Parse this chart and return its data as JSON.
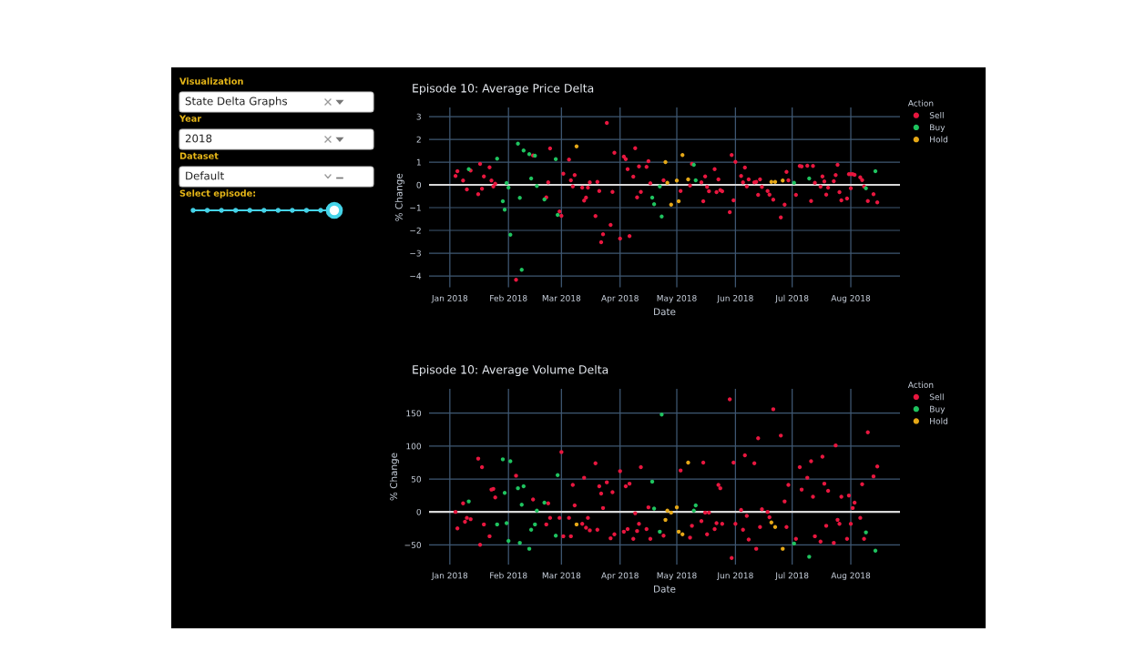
{
  "chart_data": [
    {
      "type": "other",
      "annotations": [
        "Visualization",
        "State Delta Graphs",
        "Year",
        "2018",
        "Dataset",
        "Default",
        "Select episode:"
      ]
    },
    {
      "type": "scatter",
      "title": "Episode 10: Average Price Delta",
      "xlabel": "Date",
      "ylabel": "% Change",
      "legend_title": "Action",
      "legend": "top right",
      "grid": true,
      "marker": "circle",
      "xlim": [
        "2017-12-21",
        "2018-08-27"
      ],
      "ylim": [
        -4.5,
        3.4
      ],
      "xticks": [
        {
          "value": "2018-01-01",
          "label": "Jan 2018"
        },
        {
          "value": "2018-02-01",
          "label": "Feb 2018"
        },
        {
          "value": "2018-03-01",
          "label": "Mar 2018"
        },
        {
          "value": "2018-04-01",
          "label": "Apr 2018"
        },
        {
          "value": "2018-05-01",
          "label": "May 2018"
        },
        {
          "value": "2018-06-01",
          "label": "Jun 2018"
        },
        {
          "value": "2018-07-01",
          "label": "Jul 2018"
        },
        {
          "value": "2018-08-01",
          "label": "Aug 2018"
        }
      ],
      "yticks": [
        {
          "value": -4,
          "label": "−4"
        },
        {
          "value": -3,
          "label": "−3"
        },
        {
          "value": -2,
          "label": "−2"
        },
        {
          "value": -1,
          "label": "−1"
        },
        0,
        1,
        2,
        3
      ],
      "series": [
        {
          "name": "Sell",
          "color": "#e8173f",
          "x": [
            "2018-01-04",
            "2018-01-05",
            "2018-01-08",
            "2018-01-10",
            "2018-01-12",
            "2018-01-16",
            "2018-01-17",
            "2018-01-18",
            "2018-01-19",
            "2018-01-22",
            "2018-01-23",
            "2018-01-24",
            "2018-01-25",
            "2018-02-05",
            "2018-02-14",
            "2018-02-21",
            "2018-02-22",
            "2018-02-23",
            "2018-02-28",
            "2018-03-01",
            "2018-03-02",
            "2018-03-05",
            "2018-03-06",
            "2018-03-07",
            "2018-03-08",
            "2018-03-12",
            "2018-03-13",
            "2018-03-14",
            "2018-03-15",
            "2018-03-16",
            "2018-03-19",
            "2018-03-20",
            "2018-03-21",
            "2018-03-22",
            "2018-03-23",
            "2018-03-25",
            "2018-03-27",
            "2018-03-28",
            "2018-03-29",
            "2018-04-01",
            "2018-04-03",
            "2018-04-04",
            "2018-04-05",
            "2018-04-06",
            "2018-04-08",
            "2018-04-09",
            "2018-04-10",
            "2018-04-11",
            "2018-04-12",
            "2018-04-15",
            "2018-04-16",
            "2018-04-17",
            "2018-04-24",
            "2018-05-03",
            "2018-05-08",
            "2018-05-09",
            "2018-05-14",
            "2018-05-15",
            "2018-05-16",
            "2018-05-17",
            "2018-05-18",
            "2018-05-21",
            "2018-05-22",
            "2018-05-23",
            "2018-05-24",
            "2018-05-25",
            "2018-05-29",
            "2018-05-30",
            "2018-05-31",
            "2018-06-01",
            "2018-06-04",
            "2018-06-05",
            "2018-06-06",
            "2018-06-07",
            "2018-06-08",
            "2018-06-11",
            "2018-06-12",
            "2018-06-13",
            "2018-06-14",
            "2018-06-15",
            "2018-06-18",
            "2018-06-19",
            "2018-06-21",
            "2018-06-25",
            "2018-06-27",
            "2018-06-28",
            "2018-06-29",
            "2018-07-03",
            "2018-07-05",
            "2018-07-06",
            "2018-07-09",
            "2018-07-11",
            "2018-07-12",
            "2018-07-13",
            "2018-07-16",
            "2018-07-17",
            "2018-07-18",
            "2018-07-19",
            "2018-07-20",
            "2018-07-23",
            "2018-07-24",
            "2018-07-25",
            "2018-07-26",
            "2018-07-27",
            "2018-07-30",
            "2018-07-31",
            "2018-08-01",
            "2018-08-01",
            "2018-08-02",
            "2018-08-03",
            "2018-08-06",
            "2018-08-07",
            "2018-08-08",
            "2018-08-10",
            "2018-08-13",
            "2018-08-15"
          ],
          "values": [
            0.39,
            0.6,
            0.19,
            -0.2,
            0.63,
            -0.41,
            0.92,
            -0.17,
            0.37,
            0.77,
            0.19,
            -0.07,
            0.05,
            -4.17,
            1.29,
            -0.55,
            0.11,
            1.6,
            -1.17,
            -1.36,
            0.49,
            1.11,
            0.2,
            -0.07,
            0.43,
            -0.12,
            -0.69,
            -0.56,
            -0.12,
            0.11,
            -1.37,
            0.13,
            -0.27,
            -2.52,
            -2.17,
            2.72,
            -1.76,
            -0.31,
            1.41,
            -2.36,
            1.24,
            1.13,
            0.69,
            -2.25,
            0.36,
            1.61,
            -0.55,
            0.81,
            -0.31,
            0.79,
            1.04,
            0.07,
            0.2,
            -0.27,
            -0.03,
            0.92,
            0.11,
            -0.72,
            0.37,
            -0.09,
            -0.28,
            0.69,
            -0.32,
            0.24,
            -0.23,
            -0.28,
            -1.2,
            1.31,
            -0.68,
            1.01,
            0.39,
            0.11,
            0.76,
            -0.07,
            0.24,
            0.11,
            0.13,
            -0.44,
            0.24,
            -0.09,
            -0.27,
            -0.43,
            -0.65,
            -1.43,
            -0.87,
            0.57,
            0.2,
            -0.44,
            0.83,
            0.81,
            0.84,
            -0.71,
            0.83,
            0.09,
            -0.08,
            0.37,
            0.15,
            -0.43,
            -0.12,
            0.16,
            0.43,
            0.88,
            -0.32,
            -0.68,
            -0.6,
            0.47,
            0.47,
            -0.15,
            0.47,
            0.44,
            0.33,
            0.21,
            -0.07,
            -0.71,
            -0.41,
            -0.77
          ]
        },
        {
          "name": "Buy",
          "color": "#1fc35f",
          "x": [
            "2018-01-11",
            "2018-01-26",
            "2018-01-29",
            "2018-01-30",
            "2018-01-31",
            "2018-02-01",
            "2018-02-02",
            "2018-02-06",
            "2018-02-07",
            "2018-02-08",
            "2018-02-09",
            "2018-02-12",
            "2018-02-13",
            "2018-02-15",
            "2018-02-16",
            "2018-02-20",
            "2018-02-26",
            "2018-02-27",
            "2018-04-18",
            "2018-04-19",
            "2018-04-22",
            "2018-04-23",
            "2018-05-10",
            "2018-05-11",
            "2018-07-02",
            "2018-07-10",
            "2018-08-09",
            "2018-08-14"
          ],
          "values": [
            0.69,
            1.15,
            -0.72,
            -1.09,
            0.08,
            -0.12,
            -2.19,
            1.81,
            -0.57,
            -3.73,
            1.51,
            1.35,
            0.28,
            1.28,
            -0.05,
            -0.64,
            1.13,
            -1.32,
            -0.56,
            -0.85,
            -0.07,
            -1.39,
            0.88,
            0.2,
            0.09,
            0.28,
            -0.15,
            0.6
          ]
        },
        {
          "name": "Hold",
          "color": "#e6a817",
          "x": [
            "2018-03-09",
            "2018-04-25",
            "2018-04-26",
            "2018-04-28",
            "2018-05-01",
            "2018-05-02",
            "2018-05-04",
            "2018-05-07",
            "2018-06-20",
            "2018-06-22",
            "2018-06-26"
          ],
          "values": [
            1.69,
            1.0,
            0.09,
            -0.87,
            0.19,
            -0.72,
            1.31,
            0.24,
            0.13,
            0.13,
            0.19
          ]
        }
      ]
    },
    {
      "type": "scatter",
      "title": "Episode 10: Average Volume Delta",
      "xlabel": "Date",
      "ylabel": "% Change",
      "legend_title": "Action",
      "legend": "top right",
      "grid": true,
      "marker": "circle",
      "xlim": [
        "2017-12-21",
        "2018-08-27"
      ],
      "ylim": [
        -80,
        187
      ],
      "xticks": [
        {
          "value": "2018-01-01",
          "label": "Jan 2018"
        },
        {
          "value": "2018-02-01",
          "label": "Feb 2018"
        },
        {
          "value": "2018-03-01",
          "label": "Mar 2018"
        },
        {
          "value": "2018-04-01",
          "label": "Apr 2018"
        },
        {
          "value": "2018-05-01",
          "label": "May 2018"
        },
        {
          "value": "2018-06-01",
          "label": "Jun 2018"
        },
        {
          "value": "2018-07-01",
          "label": "Jul 2018"
        },
        {
          "value": "2018-08-01",
          "label": "Aug 2018"
        }
      ],
      "yticks": [
        {
          "value": -50,
          "label": "−50"
        },
        0,
        50,
        100,
        150
      ],
      "series": [
        {
          "name": "Sell",
          "color": "#e8173f",
          "x": [
            "2018-01-04",
            "2018-01-05",
            "2018-01-08",
            "2018-01-09",
            "2018-01-10",
            "2018-01-12",
            "2018-01-16",
            "2018-01-17",
            "2018-01-18",
            "2018-01-19",
            "2018-01-22",
            "2018-01-23",
            "2018-01-24",
            "2018-01-25",
            "2018-02-05",
            "2018-02-14",
            "2018-02-21",
            "2018-02-22",
            "2018-02-23",
            "2018-02-28",
            "2018-03-01",
            "2018-03-02",
            "2018-03-05",
            "2018-03-06",
            "2018-03-07",
            "2018-03-08",
            "2018-03-12",
            "2018-03-13",
            "2018-03-14",
            "2018-03-15",
            "2018-03-16",
            "2018-03-19",
            "2018-03-20",
            "2018-03-21",
            "2018-03-22",
            "2018-03-23",
            "2018-03-25",
            "2018-03-27",
            "2018-03-28",
            "2018-03-29",
            "2018-04-01",
            "2018-04-03",
            "2018-04-04",
            "2018-04-05",
            "2018-04-06",
            "2018-04-08",
            "2018-04-09",
            "2018-04-10",
            "2018-04-11",
            "2018-04-12",
            "2018-04-15",
            "2018-04-16",
            "2018-04-17",
            "2018-04-24",
            "2018-05-03",
            "2018-05-08",
            "2018-05-09",
            "2018-05-14",
            "2018-05-15",
            "2018-05-16",
            "2018-05-17",
            "2018-05-18",
            "2018-05-21",
            "2018-05-22",
            "2018-05-23",
            "2018-05-24",
            "2018-05-25",
            "2018-05-29",
            "2018-05-30",
            "2018-05-31",
            "2018-06-01",
            "2018-06-04",
            "2018-06-05",
            "2018-06-06",
            "2018-06-07",
            "2018-06-08",
            "2018-06-11",
            "2018-06-12",
            "2018-06-13",
            "2018-06-14",
            "2018-06-15",
            "2018-06-18",
            "2018-06-19",
            "2018-06-21",
            "2018-06-25",
            "2018-06-27",
            "2018-06-28",
            "2018-06-29",
            "2018-07-03",
            "2018-07-05",
            "2018-07-06",
            "2018-07-09",
            "2018-07-11",
            "2018-07-12",
            "2018-07-13",
            "2018-07-16",
            "2018-07-17",
            "2018-07-18",
            "2018-07-19",
            "2018-07-20",
            "2018-07-23",
            "2018-07-24",
            "2018-07-25",
            "2018-07-26",
            "2018-07-27",
            "2018-07-30",
            "2018-07-31",
            "2018-08-01",
            "2018-08-02",
            "2018-08-03",
            "2018-08-06",
            "2018-08-07",
            "2018-08-08",
            "2018-08-10",
            "2018-08-13",
            "2018-08-15"
          ],
          "values": [
            0,
            -25,
            13,
            -15,
            -9,
            -11,
            81,
            -50,
            68,
            -19,
            -37,
            34,
            35,
            22,
            55,
            19,
            -19,
            13,
            -9,
            -9,
            91,
            -37,
            -9,
            -37,
            41,
            10,
            -18,
            52,
            -24,
            -9,
            -28,
            74,
            -27,
            39,
            28,
            6,
            45,
            -40,
            30,
            -34,
            62,
            -30,
            39,
            -26,
            43,
            -41,
            -2,
            -29,
            -18,
            68,
            -26,
            7,
            -41,
            -36,
            63,
            -39,
            -21,
            -14,
            75,
            -1,
            -34,
            -1,
            -26,
            -17,
            41,
            36,
            -18,
            171,
            -70,
            75,
            -18,
            3,
            -27,
            86,
            -6,
            -42,
            74,
            -56,
            112,
            -23,
            4,
            0,
            -8,
            156,
            116,
            16,
            -23,
            41,
            -41,
            68,
            34,
            52,
            77,
            23,
            -37,
            -45,
            84,
            43,
            -21,
            32,
            -47,
            101,
            -12,
            -18,
            23,
            -41,
            25,
            -18,
            6,
            14,
            -9,
            42,
            -41,
            121,
            54,
            69
          ]
        },
        {
          "name": "Buy",
          "color": "#1fc35f",
          "x": [
            "2018-01-11",
            "2018-01-26",
            "2018-01-29",
            "2018-01-30",
            "2018-01-31",
            "2018-02-01",
            "2018-02-02",
            "2018-02-06",
            "2018-02-07",
            "2018-02-08",
            "2018-02-09",
            "2018-02-12",
            "2018-02-13",
            "2018-02-15",
            "2018-02-16",
            "2018-02-20",
            "2018-02-26",
            "2018-02-27",
            "2018-04-18",
            "2018-04-19",
            "2018-04-22",
            "2018-04-23",
            "2018-05-10",
            "2018-05-11",
            "2018-07-02",
            "2018-07-10",
            "2018-08-09",
            "2018-08-14"
          ],
          "values": [
            16,
            -19,
            80,
            29,
            -17,
            -44,
            77,
            36,
            -47,
            11,
            39,
            -56,
            -27,
            -19,
            2,
            14,
            -36,
            56,
            46,
            5,
            -30,
            148,
            2,
            10,
            -48,
            -68,
            -31,
            -59
          ]
        },
        {
          "name": "Hold",
          "color": "#e6a817",
          "x": [
            "2018-03-09",
            "2018-04-25",
            "2018-04-26",
            "2018-04-28",
            "2018-05-01",
            "2018-05-02",
            "2018-05-04",
            "2018-05-07",
            "2018-06-20",
            "2018-06-22",
            "2018-06-26"
          ],
          "values": [
            -19,
            -12,
            2,
            -1,
            7,
            -30,
            -34,
            75,
            -16,
            -23,
            -56
          ]
        }
      ]
    }
  ]
}
